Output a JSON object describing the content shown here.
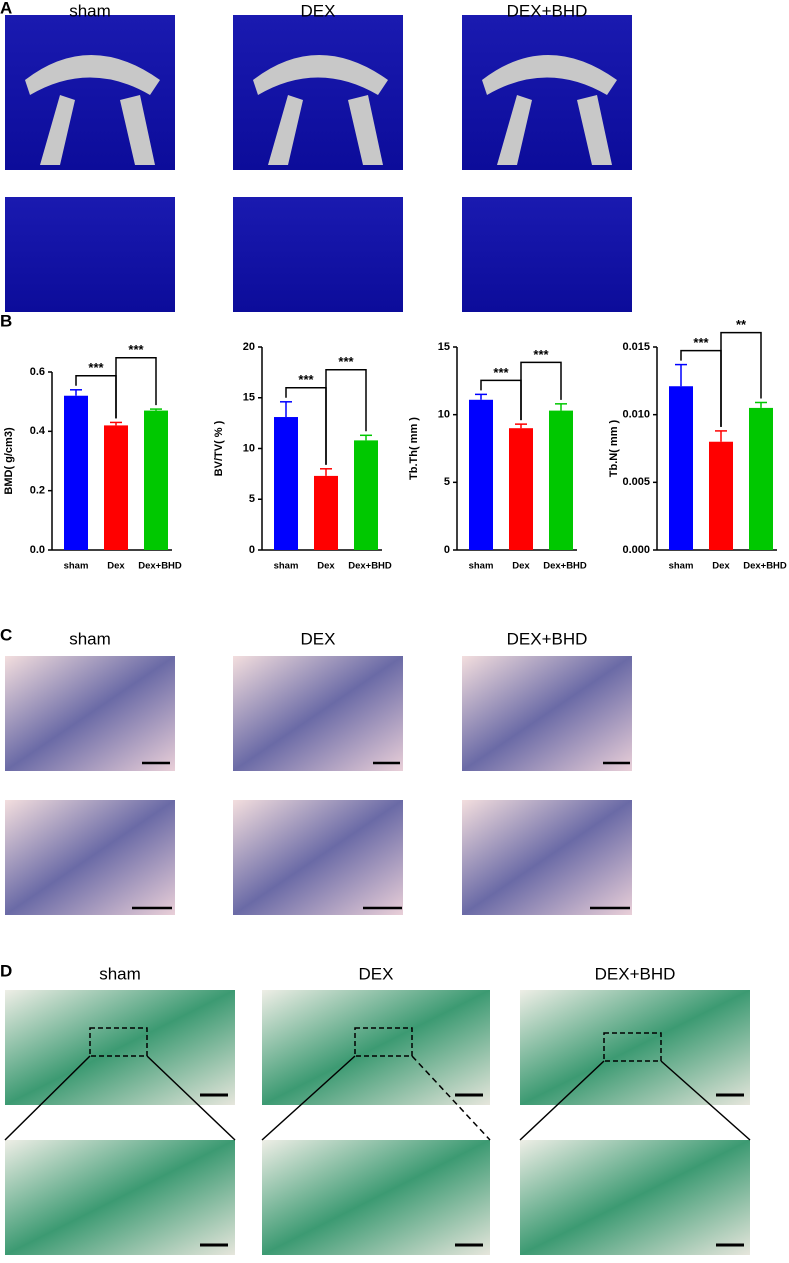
{
  "panels": {
    "A": {
      "label": "A",
      "groups": [
        "sham",
        "DEX",
        "DEX+BHD"
      ]
    },
    "B": {
      "label": "B"
    },
    "C": {
      "label": "C",
      "groups": [
        "sham",
        "DEX",
        "DEX+BHD"
      ]
    },
    "D": {
      "label": "D",
      "groups": [
        "sham",
        "DEX",
        "DEX+BHD"
      ]
    }
  },
  "chart_data": [
    {
      "type": "bar",
      "ylabel": "BMD( g/cm3)",
      "categories": [
        "sham",
        "Dex",
        "Dex+BHD"
      ],
      "values": [
        0.52,
        0.42,
        0.47
      ],
      "errors": [
        0.02,
        0.01,
        0.005
      ],
      "colors": [
        "#0000ff",
        "#ff0000",
        "#00c800"
      ],
      "ylim": [
        0,
        0.6
      ],
      "yticks": [
        {
          "value": 0,
          "label": "0.0"
        },
        0.2,
        0.4,
        0.6
      ],
      "significance": [
        "***",
        "***"
      ]
    },
    {
      "type": "bar",
      "ylabel": "BV/TV( % )",
      "categories": [
        "sham",
        "Dex",
        "Dex+BHD"
      ],
      "values": [
        13.1,
        7.3,
        10.8
      ],
      "errors": [
        1.5,
        0.7,
        0.5
      ],
      "colors": [
        "#0000ff",
        "#ff0000",
        "#00c800"
      ],
      "ylim": [
        0,
        20
      ],
      "yticks": [
        0,
        5,
        10,
        15,
        20
      ],
      "significance": [
        "***",
        "***"
      ]
    },
    {
      "type": "bar",
      "ylabel": "Tb.Th( mm )",
      "categories": [
        "sham",
        "Dex",
        "Dex+BHD"
      ],
      "values": [
        11.1,
        9.0,
        10.3
      ],
      "errors": [
        0.4,
        0.3,
        0.5
      ],
      "colors": [
        "#0000ff",
        "#ff0000",
        "#00c800"
      ],
      "ylim": [
        0,
        15
      ],
      "yticks": [
        0,
        5,
        10,
        15
      ],
      "significance": [
        "***",
        "***"
      ]
    },
    {
      "type": "bar",
      "ylabel": "Tb.N( mm )",
      "categories": [
        "sham",
        "Dex",
        "Dex+BHD"
      ],
      "values": [
        0.0121,
        0.008,
        0.0105
      ],
      "errors": [
        0.0016,
        0.0008,
        0.0004
      ],
      "colors": [
        "#0000ff",
        "#ff0000",
        "#00c800"
      ],
      "ylim": [
        0,
        0.015
      ],
      "yticks": [
        {
          "value": 0,
          "label": "0.000"
        },
        {
          "value": 0.005,
          "label": "0.005"
        },
        {
          "value": 0.01,
          "label": "0.010"
        },
        {
          "value": 0.015,
          "label": "0.015"
        }
      ],
      "significance": [
        "***",
        "**"
      ]
    }
  ]
}
